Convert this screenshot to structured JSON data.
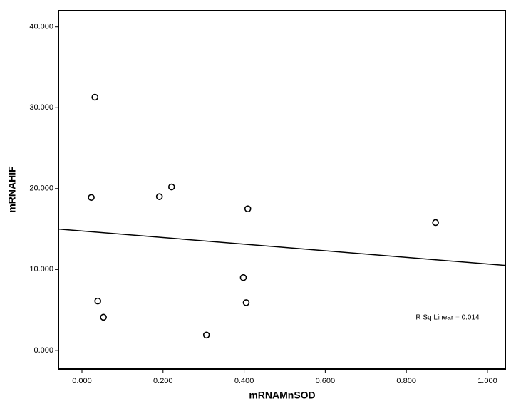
{
  "chart_data": {
    "type": "scatter",
    "x_label": "mRNAMnSOD",
    "y_label": "mRNAHIF",
    "x": [
      0.032,
      0.023,
      0.039,
      0.053,
      0.191,
      0.221,
      0.307,
      0.398,
      0.409,
      0.405,
      0.872
    ],
    "values": [
      31.3,
      18.9,
      6.1,
      4.1,
      19.0,
      20.2,
      1.9,
      9.0,
      17.5,
      5.9,
      15.8
    ],
    "color": "#000000",
    "fit": {
      "x": [
        -0.058,
        1.044
      ],
      "y": [
        15.0,
        10.5
      ]
    },
    "annotation": "R Sq Linear = 0.014",
    "xlim": [
      -0.058,
      1.044
    ],
    "ylim": [
      -2.3,
      42.0
    ],
    "xticks": [
      {
        "value": 0,
        "label": "0.000"
      },
      {
        "value": 0.2,
        "label": "0.200"
      },
      {
        "value": 0.4,
        "label": "0.400"
      },
      {
        "value": 0.6,
        "label": "0.600"
      },
      {
        "value": 0.8,
        "label": "0.800"
      },
      {
        "value": 1,
        "label": "1.000"
      }
    ],
    "yticks": [
      {
        "value": 0,
        "label": "0.000"
      },
      {
        "value": 10,
        "label": "10.000"
      },
      {
        "value": 20,
        "label": "20.000"
      },
      {
        "value": 30,
        "label": "30.000"
      },
      {
        "value": 40,
        "label": "40.000"
      }
    ]
  }
}
